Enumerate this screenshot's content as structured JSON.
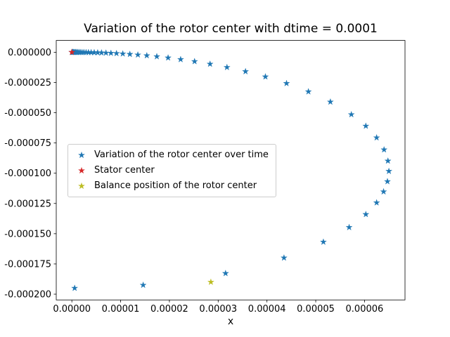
{
  "chart_data": {
    "type": "scatter",
    "title": "Variation of the rotor center with dtime = 0.0001",
    "xlabel": "x",
    "ylabel": "",
    "grid": false,
    "legend_position": "center left",
    "background": "#ffffff",
    "xlim": [
      -3.2e-06,
      6.83e-05
    ],
    "ylim": [
      -0.00020475,
      9.75e-06
    ],
    "xticks": {
      "values": [
        0.0,
        1e-05,
        2e-05,
        3e-05,
        4e-05,
        5e-05,
        6e-05
      ],
      "labels": [
        "0.00000",
        "0.00001",
        "0.00002",
        "0.00003",
        "0.00004",
        "0.00005",
        "0.00006"
      ]
    },
    "yticks": {
      "values": [
        0.0,
        -2.5e-05,
        -5e-05,
        -7.5e-05,
        -0.0001,
        -0.000125,
        -0.00015,
        -0.000175,
        -0.0002
      ],
      "labels": [
        "0.000000",
        "-0.000025",
        "-0.000050",
        "-0.000075",
        "-0.000100",
        "-0.000125",
        "-0.000150",
        "-0.000175",
        "-0.000200"
      ]
    },
    "series": [
      {
        "name": "Variation of the rotor center over time",
        "color": "#1f77b4",
        "marker": "star",
        "points": [
          [
            0.0,
            0.0
          ],
          [
            1.13e-07,
            -1.5e-10
          ],
          [
            2.42e-07,
            -6.7e-10
          ],
          [
            3.87e-07,
            -1.7e-09
          ],
          [
            5.5e-07,
            -3.5e-09
          ],
          [
            7.35e-07,
            -6.2e-09
          ],
          [
            9.44e-07,
            -1.03e-08
          ],
          [
            1.18e-06,
            -1.61e-08
          ],
          [
            1.45e-06,
            -2.42e-08
          ],
          [
            1.75e-06,
            -3.53e-08
          ],
          [
            2.09e-06,
            -5.04e-08
          ],
          [
            2.47e-06,
            -7.06e-08
          ],
          [
            2.91e-06,
            -9.76e-08
          ],
          [
            3.4e-06,
            -1.33e-07
          ],
          [
            3.95e-06,
            -1.81e-07
          ],
          [
            4.58e-06,
            -2.42e-07
          ],
          [
            5.29e-06,
            -3.23e-07
          ],
          [
            6.09e-06,
            -4.28e-07
          ],
          [
            6.99e-06,
            -5.65e-07
          ],
          [
            8.01e-06,
            -7.42e-07
          ],
          [
            9.15e-06,
            -9.7e-07
          ],
          [
            1.044e-05,
            -1.265e-06
          ],
          [
            1.189e-05,
            -1.646e-06
          ],
          [
            1.353e-05,
            -2.135e-06
          ],
          [
            1.536e-05,
            -2.763e-06
          ],
          [
            1.742e-05,
            -3.569e-06
          ],
          [
            1.973e-05,
            -4.6e-06
          ],
          [
            2.23e-05,
            -5.922e-06
          ],
          [
            2.516e-05,
            -7.603e-06
          ],
          [
            2.833e-05,
            -9.752e-06
          ],
          [
            3.18e-05,
            -1.247e-05
          ],
          [
            3.56e-05,
            -1.592e-05
          ],
          [
            3.968e-05,
            -2.027e-05
          ],
          [
            4.401e-05,
            -2.574e-05
          ],
          [
            4.85e-05,
            -3.258e-05
          ],
          [
            5.3e-05,
            -4.105e-05
          ],
          [
            5.73e-05,
            -5.147e-05
          ],
          [
            6.027e-05,
            -6.098e-05
          ],
          [
            6.248e-05,
            -7.063e-05
          ],
          [
            6.401e-05,
            -8.057e-05
          ],
          [
            6.48e-05,
            -8.985e-05
          ],
          [
            6.5e-05,
            -9.835e-05
          ],
          [
            6.47e-05,
            -0.00010685
          ],
          [
            6.391e-05,
            -0.00011527
          ],
          [
            6.248e-05,
            -0.00012437
          ],
          [
            6.027e-05,
            -0.00013402
          ],
          [
            5.685e-05,
            -0.00014477
          ],
          [
            5.157e-05,
            -0.00015685
          ],
          [
            4.349e-05,
            -0.00016996
          ],
          [
            3.151e-05,
            -0.00018278
          ],
          [
            1.462e-05,
            -0.0001925
          ],
          [
            5.7e-07,
            -0.000195
          ]
        ]
      },
      {
        "name": "Stator center",
        "color": "#d62728",
        "marker": "star",
        "points": [
          [
            0.0,
            0.0
          ]
        ]
      },
      {
        "name": "Balance position of the rotor center",
        "color": "#bcbd22",
        "marker": "star",
        "points": [
          [
            2.85e-05,
            -0.00019
          ]
        ]
      }
    ]
  }
}
